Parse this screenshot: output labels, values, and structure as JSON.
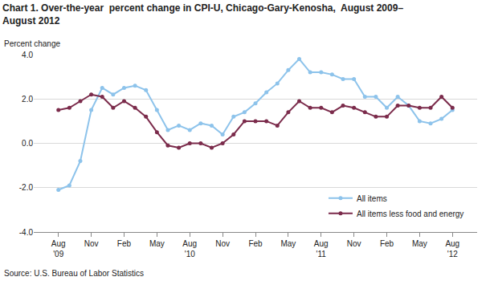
{
  "chart_data": {
    "type": "line",
    "title": "Chart 1. Over-the-year  percent change in CPI-U, Chicago-Gary-Kenosha,  August 2009–\nAugust 2012",
    "ylabel": "Percent change",
    "source": "Source: U.S. Bureau of Labor Statistics",
    "categories": [
      "Aug\n'09",
      null,
      null,
      "Nov",
      null,
      null,
      "Feb",
      null,
      null,
      "May",
      null,
      null,
      "Aug\n'10",
      null,
      null,
      "Nov",
      null,
      null,
      "Feb",
      null,
      null,
      "May",
      null,
      null,
      "Aug\n'11",
      null,
      null,
      "Nov",
      null,
      null,
      "Feb",
      null,
      null,
      "May",
      null,
      null,
      "Aug\n'12"
    ],
    "series": [
      {
        "name": "All items",
        "color": "#8dc3eb",
        "marker": "circle",
        "line_style": "solid",
        "values": [
          -2.1,
          -1.9,
          -0.8,
          1.5,
          2.5,
          2.2,
          2.5,
          2.6,
          2.4,
          1.5,
          0.6,
          0.8,
          0.6,
          0.9,
          0.8,
          0.4,
          1.2,
          1.4,
          1.8,
          2.3,
          2.7,
          3.3,
          3.8,
          3.2,
          3.2,
          3.1,
          2.9,
          2.9,
          2.1,
          2.1,
          1.6,
          2.1,
          1.7,
          1.0,
          0.9,
          1.1,
          1.5
        ]
      },
      {
        "name": "All items less food and energy",
        "color": "#7b2b4b",
        "marker": "circle",
        "line_style": "solid",
        "values": [
          1.5,
          1.6,
          1.9,
          2.2,
          2.1,
          1.6,
          1.9,
          1.6,
          1.2,
          0.5,
          -0.1,
          -0.2,
          0.0,
          0.0,
          -0.2,
          0.0,
          0.4,
          1.0,
          1.0,
          1.0,
          0.8,
          1.4,
          1.9,
          1.6,
          1.6,
          1.4,
          1.7,
          1.6,
          1.4,
          1.2,
          1.2,
          1.7,
          1.7,
          1.6,
          1.6,
          2.1,
          1.6
        ]
      }
    ],
    "ylim": [
      -4.0,
      4.0
    ],
    "yticks": [
      {
        "value": -4,
        "label": "-4.0"
      },
      {
        "value": -2,
        "label": "-2.0"
      },
      {
        "value": 0,
        "label": "0.0"
      },
      {
        "value": 2,
        "label": "2.0"
      },
      {
        "value": 4,
        "label": "4.0"
      }
    ],
    "grid": true,
    "legend": "lower right"
  }
}
